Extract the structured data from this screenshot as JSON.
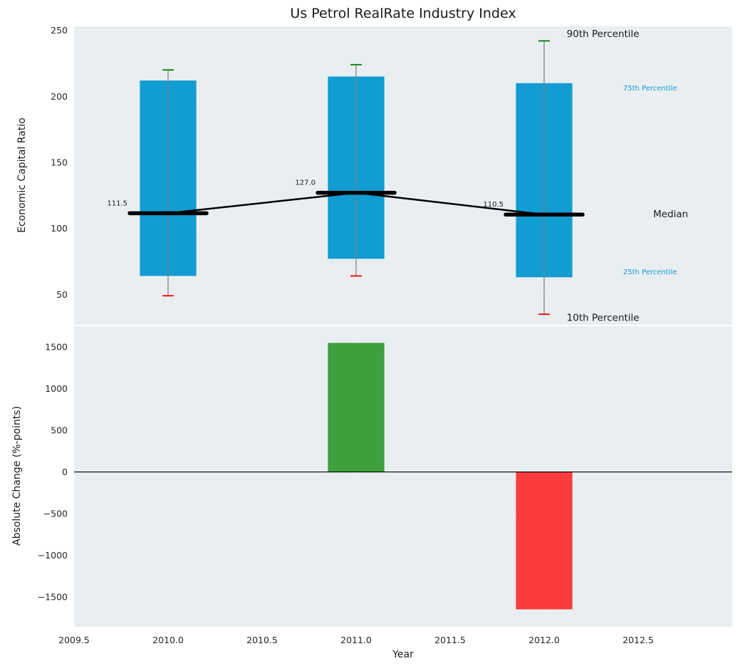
{
  "chart_data": {
    "type": "combo",
    "title": "Us Petrol RealRate Industry Index",
    "xlabel": "Year",
    "x_range": [
      2009.5,
      2013.0
    ],
    "x_ticks": [
      "2009.5",
      "2010.0",
      "2010.5",
      "2011.0",
      "2011.5",
      "2012.0",
      "2012.5"
    ],
    "x_tick_values": [
      2009.5,
      2010.0,
      2010.5,
      2011.0,
      2011.5,
      2012.0,
      2012.5
    ],
    "box_width_years": 0.3,
    "top_panel": {
      "type": "box",
      "ylabel": "Economic Capital Ratio",
      "y_range": [
        27,
        253
      ],
      "y_ticks": [
        "50",
        "100",
        "150",
        "200",
        "250"
      ],
      "y_tick_values": [
        50,
        100,
        150,
        200,
        250
      ],
      "boxes": [
        {
          "year": 2010,
          "p10": 49,
          "p25": 64,
          "median": 111.5,
          "p75": 212,
          "p90": 220,
          "median_label": "111.5"
        },
        {
          "year": 2011,
          "p10": 64,
          "p25": 77,
          "median": 127.0,
          "p75": 215,
          "p90": 224,
          "median_label": "127.0"
        },
        {
          "year": 2012,
          "p10": 35,
          "p25": 63,
          "median": 110.5,
          "p75": 210,
          "p90": 242,
          "median_label": "110.5"
        }
      ],
      "annotations": [
        {
          "name": "annotation-90th-percentile",
          "text": "90th Percentile",
          "x": 2012.12,
          "y": 247,
          "size": 13.5,
          "color": "#1a1a1a"
        },
        {
          "name": "annotation-75th-percentile",
          "text": "75th Percentile",
          "x": 2012.42,
          "y": 206,
          "size": 10,
          "color": "#1599d2"
        },
        {
          "name": "annotation-median",
          "text": "Median",
          "x": 2012.58,
          "y": 110.5,
          "size": 13.5,
          "color": "#1a1a1a"
        },
        {
          "name": "annotation-25th-percentile",
          "text": "25th Percentile",
          "x": 2012.42,
          "y": 67,
          "size": 10,
          "color": "#1599d2"
        },
        {
          "name": "annotation-10th-percentile",
          "text": "10th Percentile",
          "x": 2012.12,
          "y": 32,
          "size": 13.5,
          "color": "#1a1a1a"
        }
      ]
    },
    "bottom_panel": {
      "type": "bar",
      "ylabel": "Absolute Change (%-points)",
      "y_range": [
        -1860,
        1750
      ],
      "y_ticks": [
        "1500",
        "1000",
        "500",
        "0",
        "−500",
        "−1000",
        "−1500"
      ],
      "y_tick_values": [
        1500,
        1000,
        500,
        0,
        -500,
        -1000,
        -1500
      ],
      "bars": [
        {
          "year": 2011,
          "value": 1550
        },
        {
          "year": 2012,
          "value": -1650
        }
      ]
    },
    "colors": {
      "plot_bg": "#e9eef0",
      "grid": "#ffffff",
      "box_fill": "#119dd2",
      "whisker": "#7d7d7d",
      "cap_high": "#008000",
      "cap_low": "#ff0000",
      "median": "#000000",
      "bar_positive": "#3da03d",
      "bar_negative": "#fa3c3c",
      "tick_text": "#262626",
      "zero_line": "#000000"
    }
  }
}
